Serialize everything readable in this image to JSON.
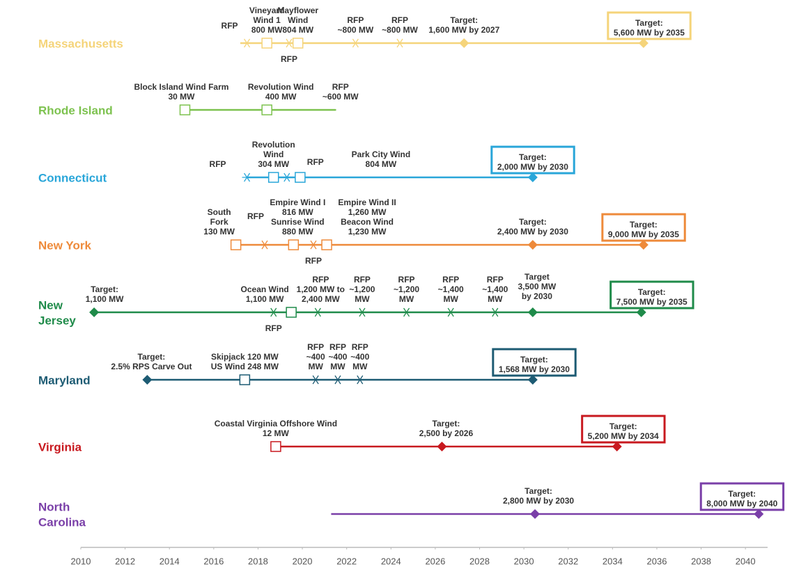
{
  "chart_data": {
    "type": "timeline",
    "xlim": [
      2010,
      2041
    ],
    "xticks": [
      2010,
      2012,
      2014,
      2016,
      2018,
      2020,
      2022,
      2024,
      2026,
      2028,
      2030,
      2032,
      2034,
      2036,
      2038,
      2040
    ],
    "series": [
      {
        "name": [
          "Massachusetts"
        ],
        "color": "#f5d47a",
        "span": [
          2017.2,
          2035.4
        ],
        "events": [
          {
            "year": 2017.5,
            "marker": "star",
            "label": [
              "RFP"
            ]
          },
          {
            "year": 2018.4,
            "marker": "square",
            "label": [
              "Vineyard",
              "Wind 1",
              "800 MW"
            ]
          },
          {
            "year": 2019.4,
            "marker": "star",
            "label": [
              "RFP"
            ],
            "position": "below"
          },
          {
            "year": 2019.8,
            "marker": "square",
            "label": [
              "Mayflower",
              "Wind",
              "804 MW"
            ]
          },
          {
            "year": 2022.4,
            "marker": "star",
            "label": [
              "RFP",
              "~800 MW"
            ]
          },
          {
            "year": 2024.4,
            "marker": "star",
            "label": [
              "RFP",
              "~800 MW"
            ]
          },
          {
            "year": 2027.3,
            "marker": "diamond",
            "label": [
              "Target:",
              "1,600 MW by 2027"
            ]
          },
          {
            "year": 2035.4,
            "marker": "diamond",
            "label": [
              "Target:",
              "5,600 MW by 2035"
            ],
            "boxed": true
          }
        ]
      },
      {
        "name": [
          "Rhode Island"
        ],
        "color": "#7dc24f",
        "span": [
          2014.7,
          2021.5
        ],
        "events": [
          {
            "year": 2014.7,
            "marker": "square",
            "label": [
              "Block Island Wind Farm",
              "30 MW"
            ]
          },
          {
            "year": 2018.4,
            "marker": "square",
            "label": [
              "Revolution Wind",
              "400 MW"
            ]
          },
          {
            "year": 2021.5,
            "marker": "none",
            "label": [
              "RFP",
              "~600 MW"
            ]
          }
        ]
      },
      {
        "name": [
          "Connecticut"
        ],
        "color": "#29a6d9",
        "span": [
          2017.5,
          2030.4
        ],
        "events": [
          {
            "year": 2017.5,
            "marker": "star",
            "label": [
              "RFP"
            ]
          },
          {
            "year": 2018.7,
            "marker": "square",
            "label": [
              "Revolution",
              "Wind",
              "304 MW"
            ]
          },
          {
            "year": 2019.3,
            "marker": "star",
            "label": [
              "RFP"
            ]
          },
          {
            "year": 2019.9,
            "marker": "square",
            "label": [
              "Park City Wind",
              "804 MW"
            ]
          },
          {
            "year": 2030.4,
            "marker": "diamond",
            "label": [
              "Target:",
              "2,000 MW by 2030"
            ],
            "boxed": true
          }
        ]
      },
      {
        "name": [
          "New York"
        ],
        "color": "#ee8a3a",
        "span": [
          2017.0,
          2035.4
        ],
        "events": [
          {
            "year": 2017.0,
            "marker": "square",
            "label": [
              "South",
              "Fork",
              "130 MW"
            ]
          },
          {
            "year": 2018.3,
            "marker": "star",
            "label": [
              "RFP"
            ]
          },
          {
            "year": 2019.6,
            "marker": "square",
            "label": [
              "Empire Wind I",
              "816 MW",
              "Sunrise Wind",
              "880 MW"
            ]
          },
          {
            "year": 2020.5,
            "marker": "star",
            "label": [
              "RFP"
            ],
            "position": "below"
          },
          {
            "year": 2021.1,
            "marker": "square",
            "label": [
              "Empire Wind II",
              "1,260 MW",
              "Beacon Wind",
              "1,230 MW"
            ]
          },
          {
            "year": 2030.4,
            "marker": "diamond",
            "label": [
              "Target:",
              "2,400 MW by 2030"
            ]
          },
          {
            "year": 2035.4,
            "marker": "diamond",
            "label": [
              "Target:",
              "9,000 MW  by 2035"
            ],
            "boxed": true
          }
        ]
      },
      {
        "name": [
          "New",
          "Jersey"
        ],
        "color": "#1f8b4a",
        "span": [
          2010.6,
          2035.3
        ],
        "events": [
          {
            "year": 2010.6,
            "marker": "diamond",
            "label": [
              "Target:",
              "1,100 MW"
            ]
          },
          {
            "year": 2018.7,
            "marker": "star",
            "label": [
              "RFP"
            ],
            "position": "below"
          },
          {
            "year": 2019.5,
            "marker": "square",
            "label": [
              "Ocean Wind",
              "1,100 MW"
            ]
          },
          {
            "year": 2020.7,
            "marker": "star",
            "label": [
              "RFP",
              "1,200 MW to",
              "2,400 MW"
            ]
          },
          {
            "year": 2022.7,
            "marker": "star",
            "label": [
              "RFP",
              "~1,200",
              "MW"
            ]
          },
          {
            "year": 2024.7,
            "marker": "star",
            "label": [
              "RFP",
              "~1,200",
              "MW"
            ]
          },
          {
            "year": 2026.7,
            "marker": "star",
            "label": [
              "RFP",
              "~1,400",
              "MW"
            ]
          },
          {
            "year": 2028.7,
            "marker": "star",
            "label": [
              "RFP",
              "~1,400",
              "MW"
            ]
          },
          {
            "year": 2030.4,
            "marker": "diamond",
            "label": [
              "Target",
              "3,500 MW",
              "by 2030"
            ]
          },
          {
            "year": 2035.3,
            "marker": "diamond",
            "label": [
              "Target:",
              "7,500 MW by 2035"
            ],
            "boxed": true
          }
        ]
      },
      {
        "name": [
          "Maryland"
        ],
        "color": "#1d5b73",
        "span": [
          2013.0,
          2030.4
        ],
        "events": [
          {
            "year": 2013.0,
            "marker": "diamond",
            "label": [
              "Target:",
              "2.5% RPS Carve Out"
            ]
          },
          {
            "year": 2017.4,
            "marker": "square",
            "label": [
              "Skipjack 120 MW",
              "US Wind 248 MW"
            ]
          },
          {
            "year": 2020.6,
            "marker": "star",
            "label": [
              "RFP",
              "~400",
              "MW"
            ]
          },
          {
            "year": 2021.6,
            "marker": "star",
            "label": [
              "RFP",
              "~400",
              "MW"
            ]
          },
          {
            "year": 2022.6,
            "marker": "star",
            "label": [
              "RFP",
              "~400",
              "MW"
            ]
          },
          {
            "year": 2030.4,
            "marker": "diamond",
            "label": [
              "Target:",
              "1,568 MW by 2030"
            ],
            "boxed": true
          }
        ]
      },
      {
        "name": [
          "Virginia"
        ],
        "color": "#c8191f",
        "span": [
          2018.8,
          2034.2
        ],
        "events": [
          {
            "year": 2018.8,
            "marker": "square",
            "label": [
              "Coastal Virginia Offshore Wind",
              "12 MW"
            ]
          },
          {
            "year": 2026.3,
            "marker": "diamond",
            "label": [
              "Target:",
              "2,500 by 2026"
            ]
          },
          {
            "year": 2034.2,
            "marker": "diamond",
            "label": [
              "Target:",
              "5,200 MW by 2034"
            ],
            "boxed": true
          }
        ]
      },
      {
        "name": [
          "North",
          "Carolina"
        ],
        "color": "#7a3fa8",
        "span": [
          2021.3,
          2040.6
        ],
        "events": [
          {
            "year": 2030.5,
            "marker": "diamond",
            "label": [
              "Target:",
              "2,800 MW by 2030"
            ]
          },
          {
            "year": 2040.6,
            "marker": "diamond",
            "label": [
              "Target:",
              "8,000 MW by 2040"
            ],
            "boxed": true
          }
        ]
      }
    ]
  }
}
